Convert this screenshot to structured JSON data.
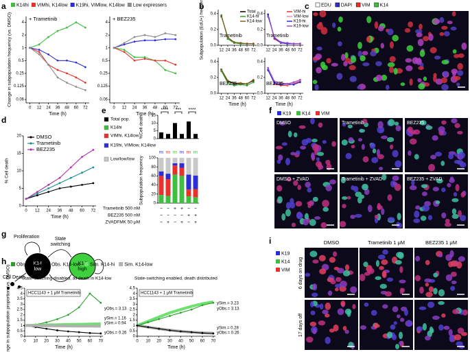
{
  "panel_labels": [
    "a",
    "b",
    "c",
    "d",
    "e",
    "f",
    "g",
    "h",
    "i"
  ],
  "chart_data": [
    {
      "type": "line",
      "log_y": true,
      "legend": "top",
      "subtitle": "+ Trametinib",
      "ylabel": "Change in subpopulation frequency (vs. DMSO)",
      "xlabel": "Time (h)",
      "x": [
        0,
        12,
        24,
        36,
        48,
        60,
        72
      ],
      "xlim": [
        -5,
        77
      ],
      "xticks": [
        0,
        12,
        24,
        36,
        48,
        60,
        72
      ],
      "ylim": [
        0.05,
        5.5
      ],
      "yticks": [
        4,
        2,
        1,
        0.5,
        0.25,
        0.125,
        0.06
      ],
      "series": [
        {
          "name": "K14hi",
          "color": "#3fbf3f",
          "values": [
            1,
            1.2,
            1.8,
            2.5,
            3,
            4,
            3
          ]
        },
        {
          "name": "VIMhi, K14low",
          "color": "#e8312a",
          "values": [
            1,
            0.8,
            0.4,
            0.3,
            0.25,
            0.2,
            0.15
          ]
        },
        {
          "name": "K19hi, VIMlow, K14low",
          "color": "#2d2dd8",
          "values": [
            1,
            0.9,
            0.7,
            0.5,
            0.5,
            0.45,
            0.35
          ]
        },
        {
          "name": "Low expressers",
          "color": "#8c8c8c",
          "values": [
            1,
            0.7,
            0.4,
            0.2,
            0.15,
            0.12,
            0.1
          ]
        }
      ]
    },
    {
      "type": "line",
      "log_y": true,
      "subtitle": "+ BEZ235",
      "xlabel": "Time (h)",
      "x": [
        0,
        12,
        24,
        36,
        48,
        60,
        72
      ],
      "xlim": [
        -5,
        77
      ],
      "xticks": [
        0,
        12,
        24,
        36,
        48,
        60,
        72
      ],
      "ylim": [
        0.05,
        5.5
      ],
      "yticks": [
        4,
        2,
        1,
        0.5,
        0.25,
        0.125,
        0.06
      ],
      "series": [
        {
          "color": "#3fbf3f",
          "values": [
            1,
            0.9,
            0.6,
            0.6,
            0.5,
            0.3,
            0.25
          ]
        },
        {
          "color": "#e8312a",
          "values": [
            1,
            0.8,
            0.5,
            0.55,
            0.5,
            0.5,
            0.4
          ]
        },
        {
          "color": "#2d2dd8",
          "values": [
            1,
            1.2,
            1.4,
            1.5,
            1.5,
            1.6,
            1.6
          ]
        },
        {
          "color": "#8c8c8c",
          "values": [
            1,
            1.3,
            1.8,
            2,
            1.8,
            2.2,
            2
          ]
        }
      ]
    },
    {
      "type": "line",
      "legend": "upper right",
      "subtitle": "Trametinib",
      "ylabel": "Subpopulation (EdU+) frequency",
      "x": [
        12,
        24,
        36,
        48,
        60,
        72
      ],
      "xlim": [
        6,
        78
      ],
      "xticks": [
        12,
        24,
        36,
        48,
        60,
        72
      ],
      "ylim": [
        0,
        0.45
      ],
      "yticks": [
        {
          "value": 0,
          "label": "0.0"
        },
        0.2,
        0.4
      ],
      "series": [
        {
          "name": "Total",
          "color": "#000000",
          "values": [
            0.37,
            0.1,
            0.03,
            0.02,
            0.02,
            0.02
          ]
        },
        {
          "name": "K14-hi",
          "color": "#2e9e2e",
          "values": [
            0.38,
            0.08,
            0.03,
            0.02,
            0.02,
            0.02
          ]
        },
        {
          "name": "K14-low",
          "color": "#8b5a1e",
          "values": [
            0.36,
            0.1,
            0.04,
            0.03,
            0.02,
            0.02
          ]
        }
      ]
    },
    {
      "type": "line",
      "legend": "upper right",
      "subtitle": "Trametinib",
      "x": [
        12,
        24,
        36,
        48,
        60,
        72
      ],
      "xlim": [
        6,
        78
      ],
      "xticks": [
        12,
        24,
        36,
        48,
        60,
        72
      ],
      "ylim": [
        0,
        0.45
      ],
      "yticks": [
        {
          "value": 0,
          "label": "0.0"
        },
        0.2,
        0.4
      ],
      "series": [
        {
          "name": "VIM-hi",
          "color": "#e8312a",
          "values": [
            0.38,
            0.08,
            0.03,
            0.02,
            0.02,
            0.02
          ]
        },
        {
          "name": "VIM-low",
          "color": "#f08cb4",
          "values": [
            0.37,
            0.1,
            0.04,
            0.03,
            0.02,
            0.02
          ]
        },
        {
          "name": "K19-hi",
          "color": "#2d2dd8",
          "values": [
            0.39,
            0.09,
            0.03,
            0.02,
            0.02,
            0.02
          ]
        },
        {
          "name": "K19-low",
          "color": "#9a4fd0",
          "values": [
            0.36,
            0.1,
            0.04,
            0.03,
            0.02,
            0.02
          ]
        }
      ]
    },
    {
      "type": "line",
      "subtitle": "BEZ235",
      "xlabel": "Time (h)",
      "x": [
        12,
        24,
        36,
        48,
        60,
        72
      ],
      "xlim": [
        6,
        78
      ],
      "xticks": [
        12,
        24,
        36,
        48,
        60,
        72
      ],
      "ylim": [
        0,
        0.45
      ],
      "yticks": [
        {
          "value": 0,
          "label": "0.0"
        },
        0.2,
        0.4
      ],
      "series": [
        {
          "color": "#000000",
          "values": [
            0.3,
            0.15,
            0.12,
            0.12,
            0.12,
            0.16
          ]
        },
        {
          "color": "#2e9e2e",
          "values": [
            0.28,
            0.13,
            0.1,
            0.11,
            0.1,
            0.14
          ]
        },
        {
          "color": "#8b5a1e",
          "values": [
            0.3,
            0.16,
            0.13,
            0.13,
            0.12,
            0.17
          ]
        }
      ]
    },
    {
      "type": "line",
      "subtitle": "BEZ235",
      "xlabel": "Time (h)",
      "x": [
        12,
        24,
        36,
        48,
        60,
        72
      ],
      "xlim": [
        6,
        78
      ],
      "xticks": [
        12,
        24,
        36,
        48,
        60,
        72
      ],
      "ylim": [
        0,
        0.45
      ],
      "yticks": [
        {
          "value": 0,
          "label": "0.0"
        },
        0.2,
        0.4
      ],
      "series": [
        {
          "color": "#e8312a",
          "values": [
            0.3,
            0.12,
            0.1,
            0.1,
            0.12,
            0.15
          ]
        },
        {
          "color": "#f08cb4",
          "values": [
            0.31,
            0.14,
            0.12,
            0.11,
            0.13,
            0.16
          ]
        },
        {
          "color": "#2d2dd8",
          "values": [
            0.29,
            0.13,
            0.11,
            0.12,
            0.11,
            0.14
          ]
        },
        {
          "color": "#9a4fd0",
          "values": [
            0.32,
            0.15,
            0.13,
            0.12,
            0.14,
            0.17
          ]
        }
      ]
    },
    {
      "type": "line",
      "legend": "upper left",
      "ylabel": "% Cell death",
      "xlabel": "Time (h)",
      "x": [
        0,
        12,
        24,
        36,
        48,
        60,
        72
      ],
      "xlim": [
        -3,
        75
      ],
      "xticks": [
        0,
        12,
        24,
        36,
        48,
        60,
        72
      ],
      "ylim": [
        0,
        20
      ],
      "yticks": [
        0,
        5,
        10,
        15,
        20
      ],
      "series": [
        {
          "name": "DMSO",
          "color": "#000000",
          "values": [
            2,
            3,
            4,
            5,
            5.5,
            6,
            6.5
          ]
        },
        {
          "name": "Trametinib",
          "color": "#1a8f8f",
          "values": [
            2,
            3.5,
            5,
            6.5,
            8,
            9.5,
            11
          ]
        },
        {
          "name": "BEZ235",
          "color": "#b030b0",
          "values": [
            2,
            4,
            6,
            8,
            11,
            14,
            16
          ]
        }
      ]
    },
    {
      "type": "bar",
      "ylabel": "%Cell death",
      "ylim": [
        0,
        15
      ],
      "yticks": [
        0,
        5,
        10,
        15
      ],
      "annotations": [
        "****",
        "***",
        "****"
      ],
      "series": [
        {
          "name": "Total pop.",
          "color": "#000000",
          "values": [
            4,
            3,
            10,
            3,
            11,
            3
          ]
        }
      ]
    },
    {
      "type": "stacked_bar",
      "ylabel": "Subpopulation frequency",
      "ylim": [
        0,
        100
      ],
      "yticks": [
        0,
        20,
        40,
        60,
        80,
        100
      ],
      "annotations": [
        "ns",
        "ns",
        "ns",
        "ns",
        "ns",
        "ns"
      ],
      "series": [
        {
          "name": "K14hi",
          "color": "#3fbf3f",
          "values": [
            18,
            16,
            63,
            60,
            15,
            13
          ]
        },
        {
          "name": "VIMhi, K14low",
          "color": "#e8312a",
          "values": [
            42,
            37,
            20,
            18,
            15,
            18
          ]
        },
        {
          "name": "K19hi, VIMlow, K14low",
          "color": "#2d2dd8",
          "values": [
            10,
            12,
            5,
            10,
            33,
            30
          ]
        },
        {
          "name": "Low/low/low",
          "color": "#c8c8c8",
          "values": [
            30,
            35,
            12,
            12,
            37,
            39
          ]
        }
      ],
      "conditions": [
        {
          "name": "Trametinib 500 nM",
          "values": [
            "−",
            "−",
            "+",
            "+",
            "−",
            "−"
          ]
        },
        {
          "name": "BEZ235 500 nM",
          "values": [
            "−",
            "−",
            "−",
            "−",
            "+",
            "+"
          ]
        },
        {
          "name": "ZVADFMK 50 μM",
          "values": [
            "−",
            "+",
            "−",
            "+",
            "−",
            "+"
          ]
        }
      ]
    },
    {
      "type": "line",
      "legend": "top",
      "title": "State-switching disabled, all death in K14-low",
      "subtitle": "HCC1143 + 1 μM Trametinib",
      "ylabel": "Change in subpopulation proportion (vs. DMSO)",
      "xlabel": "Time (h)",
      "x": [
        0,
        10,
        20,
        30,
        40,
        50,
        60,
        70
      ],
      "xlim": [
        0,
        72
      ],
      "xticks": [
        0,
        10,
        20,
        30,
        40,
        50,
        60,
        70
      ],
      "ylim": [
        0,
        4.5
      ],
      "yticks": [
        0,
        0.5,
        1,
        1.5,
        2,
        2.5,
        3,
        3.5,
        4,
        4.5
      ],
      "annotations": [
        "yObs.= 3.13",
        "ySim.= 1.16",
        "ySim.= 0.94",
        "yObs.= 0.26"
      ],
      "series": [
        {
          "name": "Obs. K14-hi",
          "color": "#2e9e2e",
          "values": [
            1,
            1.1,
            1.3,
            1.6,
            2,
            2.7,
            4,
            3.13
          ]
        },
        {
          "name": "Obs. K14-low",
          "color": "#000000",
          "values": [
            1,
            0.85,
            0.7,
            0.55,
            0.45,
            0.38,
            0.3,
            0.26
          ]
        },
        {
          "name": "Sim. K14-hi",
          "color": "#6fe06f",
          "values": [
            1,
            1.03,
            1.06,
            1.08,
            1.1,
            1.12,
            1.14,
            1.16
          ]
        },
        {
          "name": "Sim. K14-low",
          "color": "#b0b0b0",
          "values": [
            1,
            0.99,
            0.98,
            0.97,
            0.96,
            0.95,
            0.945,
            0.94
          ]
        }
      ]
    },
    {
      "type": "line",
      "title": "State-switching enabled, death distributed",
      "subtitle": "HCC1143 + 1 μM Trametinib",
      "xlabel": "Time (h)",
      "x": [
        0,
        10,
        20,
        30,
        40,
        50,
        60,
        70
      ],
      "xlim": [
        0,
        72
      ],
      "xticks": [
        0,
        10,
        20,
        30,
        40,
        50,
        60,
        70
      ],
      "ylim": [
        0,
        4.5
      ],
      "yticks": [
        0,
        0.5,
        1,
        1.5,
        2,
        2.5,
        3,
        3.5,
        4,
        4.5
      ],
      "annotations": [
        "ySim.= 3.23",
        "yObs.= 3.13",
        "ySim.= 0.28",
        "yObs.= 0.26"
      ],
      "series": [
        {
          "color": "#6fe06f",
          "values": [
            1,
            1.4,
            1.8,
            2.2,
            2.5,
            2.8,
            3.05,
            3.23
          ]
        },
        {
          "color": "#b0b0b0",
          "values": [
            1,
            0.85,
            0.7,
            0.57,
            0.47,
            0.38,
            0.32,
            0.28
          ]
        },
        {
          "color": "#2e9e2e",
          "values": [
            1,
            1.3,
            1.6,
            1.9,
            2.2,
            2.5,
            2.9,
            3.13
          ]
        },
        {
          "color": "#000000",
          "values": [
            1,
            0.85,
            0.7,
            0.55,
            0.45,
            0.38,
            0.3,
            0.26
          ]
        }
      ]
    }
  ],
  "panel_c": {
    "legend": [
      "EDU",
      "DAPI",
      "VIM",
      "K14"
    ]
  },
  "panel_f": {
    "legend": [
      "K19",
      "K14",
      "VIM"
    ],
    "images": [
      "DMSO",
      "Trametinib",
      "BEZ235",
      "DMSO + ZVAD",
      "Trametinib + ZVAD",
      "BEZ235 + ZVAD"
    ]
  },
  "panel_g": {
    "proliferation": "Proliferation",
    "state_switching": [
      "State",
      "switching"
    ],
    "cell_death": "Cell Death",
    "k14_low": [
      "K14",
      "low"
    ],
    "k14_high": [
      "K14",
      "high"
    ]
  },
  "panel_i": {
    "legend": [
      "K19",
      "K14",
      "VIM"
    ],
    "columns": [
      "DMSO",
      "Trametinib 1 μM",
      "BEZ235 1 μM"
    ],
    "rows": [
      "6 days on drug",
      "17 days off"
    ]
  }
}
